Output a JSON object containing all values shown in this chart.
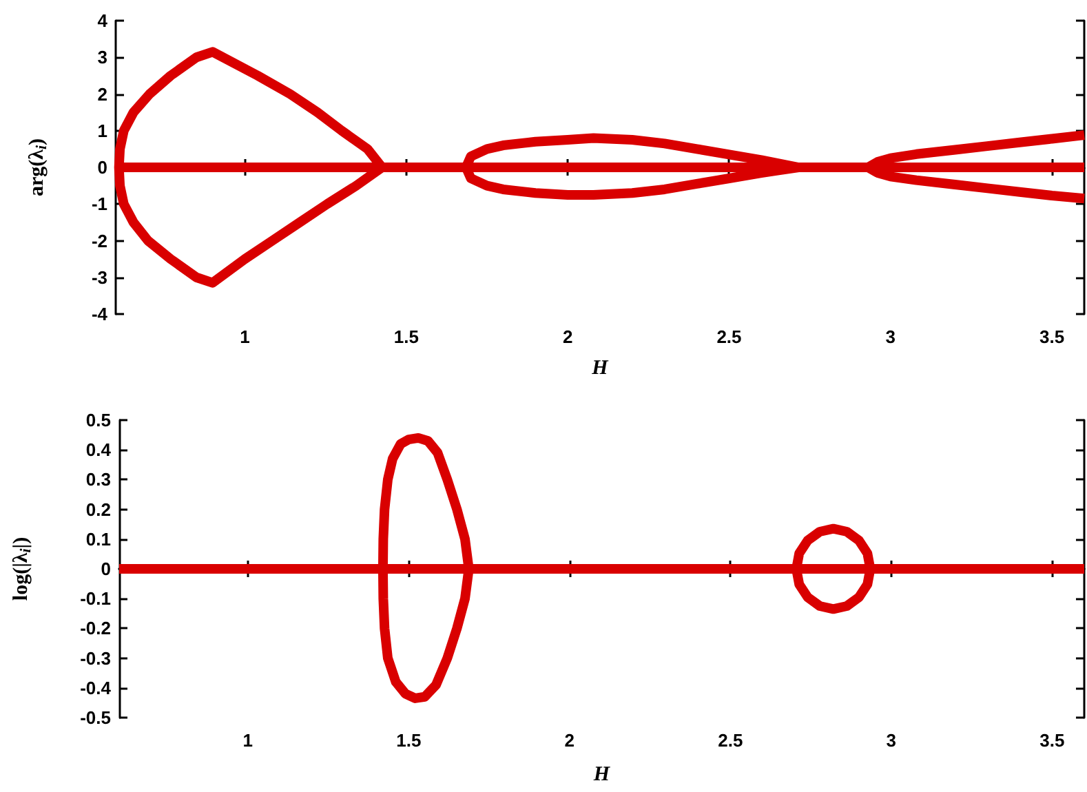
{
  "chart_data": [
    {
      "type": "line",
      "xlabel": "H",
      "ylabel": "arg(λ$_{i}$)",
      "xlim": [
        0.6,
        3.6
      ],
      "xticks": [
        1,
        1.5,
        2,
        2.5,
        3,
        3.5
      ],
      "ylim": [
        -4,
        4
      ],
      "yticks": [
        -4,
        -3,
        -2,
        -1,
        0,
        1,
        2,
        3,
        4
      ],
      "series": [
        {
          "color": "#d90000",
          "x": [
            0.6,
            3.6
          ],
          "values": [
            0,
            0
          ]
        },
        {
          "color": "#d90000",
          "x": [
            3.6,
            3.5,
            3.4,
            3.3,
            3.2,
            3.08,
            3.0,
            2.96,
            2.93,
            2.715,
            2.6,
            2.5,
            2.4,
            2.3,
            2.2,
            2.08,
            2.0,
            1.9,
            1.8,
            1.75,
            1.7,
            1.685,
            1.425,
            1.345,
            1.255,
            1.17,
            1.085,
            1.0,
            0.9,
            0.85,
            0.77,
            0.7,
            0.655,
            0.625,
            0.613,
            0.61,
            0.613,
            0.625,
            0.655,
            0.705,
            0.77,
            0.85,
            0.9,
            1.04,
            1.14,
            1.225,
            1.3,
            1.38,
            1.425,
            1.685,
            1.7,
            1.75,
            1.8,
            1.9,
            2.0,
            2.08,
            2.2,
            2.3,
            2.4,
            2.5,
            2.6,
            2.715,
            2.93,
            2.96,
            3.0,
            3.08,
            3.2,
            3.3,
            3.4,
            3.5,
            3.6
          ],
          "values": [
            -0.85,
            -0.77,
            -0.67,
            -0.57,
            -0.47,
            -0.35,
            -0.25,
            -0.15,
            0,
            0,
            -0.15,
            -0.3,
            -0.45,
            -0.6,
            -0.7,
            -0.75,
            -0.75,
            -0.7,
            -0.6,
            -0.5,
            -0.3,
            0,
            0,
            -0.5,
            -1,
            -1.5,
            -2,
            -2.5,
            -3.15,
            -3,
            -2.5,
            -2,
            -1.5,
            -1,
            -0.5,
            0,
            0.5,
            1,
            1.5,
            2,
            2.5,
            3,
            3.15,
            2.5,
            2,
            1.5,
            1,
            0.5,
            0,
            0,
            0.3,
            0.5,
            0.6,
            0.7,
            0.75,
            0.8,
            0.75,
            0.65,
            0.5,
            0.35,
            0.2,
            0,
            0,
            0.15,
            0.25,
            0.36,
            0.48,
            0.58,
            0.68,
            0.78,
            0.88
          ]
        }
      ]
    },
    {
      "type": "line",
      "xlabel": "H",
      "ylabel": "log(|λ$_{i}$|)",
      "xlim": [
        0.6,
        3.6
      ],
      "xticks": [
        1,
        1.5,
        2,
        2.5,
        3,
        3.5
      ],
      "ylim": [
        -0.5,
        0.5
      ],
      "yticks": [
        -0.5,
        -0.4,
        -0.3,
        -0.2,
        -0.1,
        0,
        0.1,
        0.2,
        0.3,
        0.4,
        0.5
      ],
      "series": [
        {
          "color": "#d90000",
          "x": [
            0.6,
            3.6
          ],
          "values": [
            0,
            0
          ]
        },
        {
          "color": "#d90000",
          "x": [
            0.6,
            1.42,
            1.421,
            1.425,
            1.435,
            1.45,
            1.475,
            1.5,
            1.53,
            1.56,
            1.59,
            1.62,
            1.65,
            1.675,
            1.687,
            2.705,
            2.714,
            2.74,
            2.778,
            2.82,
            2.862,
            2.9,
            2.926,
            2.935,
            3.6
          ],
          "values": [
            0,
            0,
            0.1,
            0.2,
            0.3,
            0.37,
            0.42,
            0.435,
            0.44,
            0.43,
            0.39,
            0.3,
            0.2,
            0.1,
            0,
            0,
            0.052,
            0.095,
            0.125,
            0.135,
            0.125,
            0.095,
            0.052,
            0,
            0
          ]
        },
        {
          "color": "#d90000",
          "x": [
            0.6,
            1.42,
            1.421,
            1.425,
            1.435,
            1.46,
            1.49,
            1.52,
            1.55,
            1.585,
            1.62,
            1.65,
            1.675,
            1.687,
            2.705,
            2.714,
            2.74,
            2.778,
            2.82,
            2.862,
            2.9,
            2.926,
            2.935,
            3.6
          ],
          "values": [
            0,
            0,
            -0.1,
            -0.2,
            -0.3,
            -0.38,
            -0.42,
            -0.435,
            -0.43,
            -0.39,
            -0.3,
            -0.2,
            -0.1,
            0,
            0,
            -0.052,
            -0.095,
            -0.125,
            -0.135,
            -0.125,
            -0.095,
            -0.052,
            0,
            0
          ]
        }
      ]
    }
  ]
}
